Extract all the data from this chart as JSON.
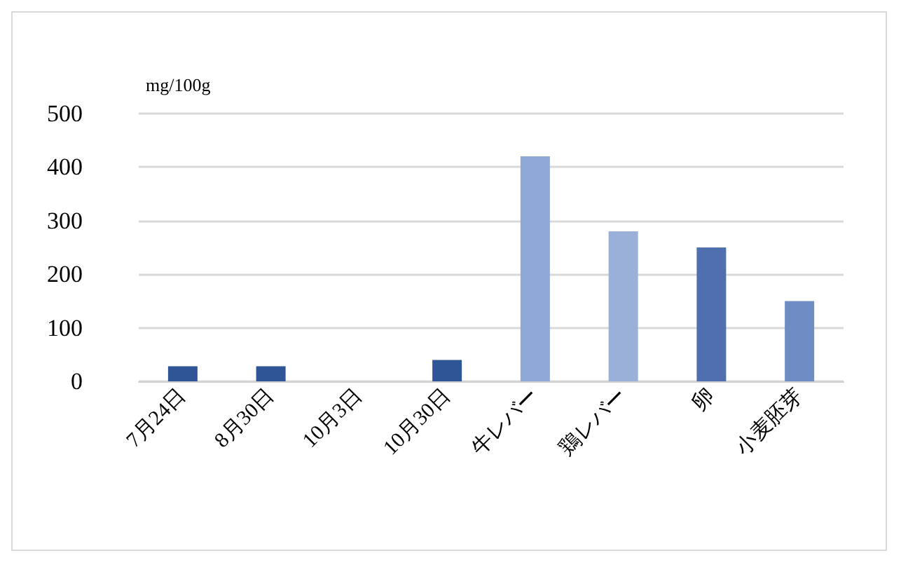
{
  "chart_data": {
    "type": "bar",
    "ylabel": "mg/100g",
    "categories": [
      "7月24日",
      "8月30日",
      "10月3日",
      "10月30日",
      "牛レバー",
      "鶏レバー",
      "卵",
      "小麦胚芽"
    ],
    "values": [
      28,
      28,
      null,
      40,
      420,
      280,
      250,
      150
    ],
    "colors": [
      "#2f5597",
      "#2f5597",
      "#2f5597",
      "#2f5597",
      "#8fa7d4",
      "#9bb0d8",
      "#4f6fae",
      "#6f8cc4"
    ],
    "ylim": [
      0,
      500
    ],
    "yticks": [
      0,
      100,
      200,
      300,
      400,
      500
    ],
    "grid": "y"
  }
}
